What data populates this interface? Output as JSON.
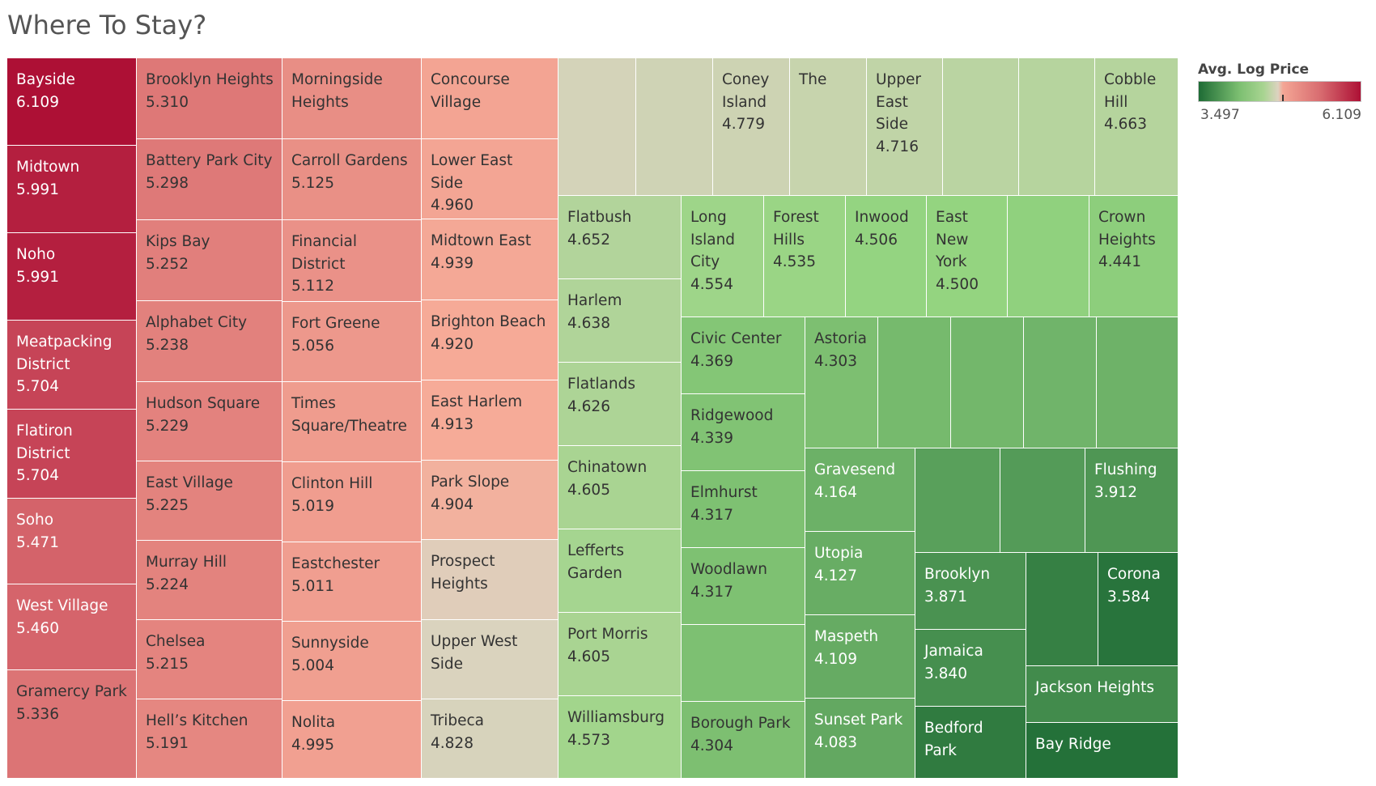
{
  "chart_data": {
    "type": "treemap",
    "title": "Where To Stay?",
    "measure": "Avg. Log Price",
    "color_scale": {
      "min": 3.497,
      "max": 6.109,
      "min_label": "3.497",
      "max_label": "6.109",
      "low_color": "#1e6b35",
      "mid_color": "#dcd3c0",
      "high_color": "#ad1035"
    },
    "nodes": [
      {
        "label": "Bayside",
        "value": 6.109,
        "shown": "6.109"
      },
      {
        "label": "Midtown",
        "value": 5.991,
        "shown": "5.991"
      },
      {
        "label": "Noho",
        "value": 5.991,
        "shown": "5.991"
      },
      {
        "label": "Meatpacking District",
        "value": 5.704,
        "shown": "5.704"
      },
      {
        "label": "Flatiron District",
        "value": 5.704,
        "shown": "5.704"
      },
      {
        "label": "Soho",
        "value": 5.471,
        "shown": "5.471"
      },
      {
        "label": "West Village",
        "value": 5.46,
        "shown": "5.460"
      },
      {
        "label": "Gramercy Park",
        "value": 5.336,
        "shown": "5.336"
      },
      {
        "label": "Brooklyn Heights",
        "value": 5.31,
        "shown": "5.310"
      },
      {
        "label": "Battery Park City",
        "value": 5.298,
        "shown": "5.298"
      },
      {
        "label": "Kips Bay",
        "value": 5.252,
        "shown": "5.252"
      },
      {
        "label": "Alphabet City",
        "value": 5.238,
        "shown": "5.238"
      },
      {
        "label": "Hudson Square",
        "value": 5.229,
        "shown": "5.229"
      },
      {
        "label": "East Village",
        "value": 5.225,
        "shown": "5.225"
      },
      {
        "label": "Murray Hill",
        "value": 5.224,
        "shown": "5.224"
      },
      {
        "label": "Chelsea",
        "value": 5.215,
        "shown": "5.215"
      },
      {
        "label": "Hell’s Kitchen",
        "value": 5.191,
        "shown": "5.191"
      },
      {
        "label": "Morningside Heights",
        "value": 5.14,
        "shown": ""
      },
      {
        "label": "Carroll Gardens",
        "value": 5.125,
        "shown": "5.125"
      },
      {
        "label": "Financial District",
        "value": 5.112,
        "shown": "5.112"
      },
      {
        "label": "Fort Greene",
        "value": 5.056,
        "shown": "5.056"
      },
      {
        "label": "Times Square/Theatre",
        "value": 5.03,
        "shown": ""
      },
      {
        "label": "Clinton Hill",
        "value": 5.019,
        "shown": "5.019"
      },
      {
        "label": "Eastchester",
        "value": 5.011,
        "shown": "5.011"
      },
      {
        "label": "Sunnyside",
        "value": 5.004,
        "shown": "5.004"
      },
      {
        "label": "Nolita",
        "value": 4.995,
        "shown": "4.995"
      },
      {
        "label": "Concourse Village",
        "value": 4.97,
        "shown": ""
      },
      {
        "label": "Lower East Side",
        "value": 4.96,
        "shown": "4.960"
      },
      {
        "label": "Midtown East",
        "value": 4.939,
        "shown": "4.939"
      },
      {
        "label": "Brighton Beach",
        "value": 4.92,
        "shown": "4.920"
      },
      {
        "label": "East Harlem",
        "value": 4.913,
        "shown": "4.913"
      },
      {
        "label": "Park Slope",
        "value": 4.904,
        "shown": "4.904"
      },
      {
        "label": "Prospect Heights",
        "value": 4.86,
        "shown": ""
      },
      {
        "label": "Upper West Side",
        "value": 4.84,
        "shown": ""
      },
      {
        "label": "Tribeca",
        "value": 4.828,
        "shown": "4.828"
      },
      {
        "label": "",
        "value": 4.81,
        "shown": ""
      },
      {
        "label": "",
        "value": 4.79,
        "shown": ""
      },
      {
        "label": "Coney Island",
        "value": 4.779,
        "shown": "4.779"
      },
      {
        "label": "The",
        "value": 4.75,
        "shown": ""
      },
      {
        "label": "Upper East Side",
        "value": 4.716,
        "shown": "4.716"
      },
      {
        "label": "",
        "value": 4.69,
        "shown": ""
      },
      {
        "label": "",
        "value": 4.67,
        "shown": ""
      },
      {
        "label": "Cobble Hill",
        "value": 4.663,
        "shown": "4.663"
      },
      {
        "label": "Flatbush",
        "value": 4.652,
        "shown": "4.652"
      },
      {
        "label": "Harlem",
        "value": 4.638,
        "shown": "4.638"
      },
      {
        "label": "Flatlands",
        "value": 4.626,
        "shown": "4.626"
      },
      {
        "label": "Chinatown",
        "value": 4.605,
        "shown": "4.605"
      },
      {
        "label": "Lefferts Garden",
        "value": 4.59,
        "shown": ""
      },
      {
        "label": "Port Morris",
        "value": 4.605,
        "shown": "4.605"
      },
      {
        "label": "Williamsburg",
        "value": 4.573,
        "shown": "4.573"
      },
      {
        "label": "Long Island City",
        "value": 4.554,
        "shown": "4.554"
      },
      {
        "label": "Forest Hills",
        "value": 4.535,
        "shown": "4.535"
      },
      {
        "label": "Inwood",
        "value": 4.506,
        "shown": "4.506"
      },
      {
        "label": "East New York",
        "value": 4.5,
        "shown": "4.500"
      },
      {
        "label": "",
        "value": 4.47,
        "shown": ""
      },
      {
        "label": "Crown Heights",
        "value": 4.441,
        "shown": "4.441"
      },
      {
        "label": "Civic Center",
        "value": 4.369,
        "shown": "4.369"
      },
      {
        "label": "Ridgewood",
        "value": 4.339,
        "shown": "4.339"
      },
      {
        "label": "Elmhurst",
        "value": 4.317,
        "shown": "4.317"
      },
      {
        "label": "Woodlawn",
        "value": 4.317,
        "shown": "4.317"
      },
      {
        "label": "",
        "value": 4.31,
        "shown": ""
      },
      {
        "label": "Borough Park",
        "value": 4.304,
        "shown": "4.304"
      },
      {
        "label": "Astoria",
        "value": 4.303,
        "shown": "4.303"
      },
      {
        "label": "",
        "value": 4.25,
        "shown": ""
      },
      {
        "label": "",
        "value": 4.22,
        "shown": ""
      },
      {
        "label": "",
        "value": 4.2,
        "shown": ""
      },
      {
        "label": "",
        "value": 4.18,
        "shown": ""
      },
      {
        "label": "Gravesend",
        "value": 4.164,
        "shown": "4.164"
      },
      {
        "label": "Utopia",
        "value": 4.127,
        "shown": "4.127"
      },
      {
        "label": "Maspeth",
        "value": 4.109,
        "shown": "4.109"
      },
      {
        "label": "Sunset Park",
        "value": 4.083,
        "shown": "4.083"
      },
      {
        "label": "",
        "value": 4.0,
        "shown": ""
      },
      {
        "label": "",
        "value": 3.96,
        "shown": ""
      },
      {
        "label": "Flushing",
        "value": 3.912,
        "shown": "3.912"
      },
      {
        "label": "Brooklyn",
        "value": 3.871,
        "shown": "3.871"
      },
      {
        "label": "",
        "value": 3.7,
        "shown": ""
      },
      {
        "label": "Corona",
        "value": 3.584,
        "shown": "3.584"
      },
      {
        "label": "Jamaica",
        "value": 3.84,
        "shown": "3.840"
      },
      {
        "label": "Jackson Heights",
        "value": 3.8,
        "shown": ""
      },
      {
        "label": "Bedford Park",
        "value": 3.65,
        "shown": ""
      },
      {
        "label": "Bay Ridge",
        "value": 3.55,
        "shown": ""
      }
    ]
  }
}
